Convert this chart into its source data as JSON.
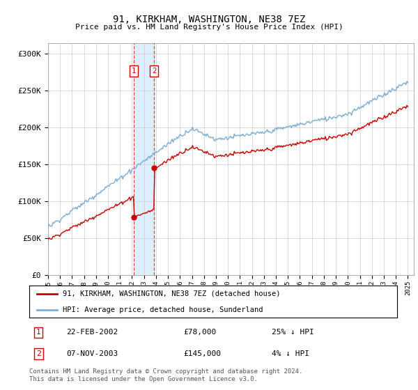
{
  "title": "91, KIRKHAM, WASHINGTON, NE38 7EZ",
  "subtitle": "Price paid vs. HM Land Registry's House Price Index (HPI)",
  "ylabel_ticks": [
    "£0",
    "£50K",
    "£100K",
    "£150K",
    "£200K",
    "£250K",
    "£300K"
  ],
  "ytick_values": [
    0,
    50000,
    100000,
    150000,
    200000,
    250000,
    300000
  ],
  "ylim": [
    0,
    315000
  ],
  "xlim_start": 1995.0,
  "xlim_end": 2025.5,
  "legend_line1": "91, KIRKHAM, WASHINGTON, NE38 7EZ (detached house)",
  "legend_line2": "HPI: Average price, detached house, Sunderland",
  "sale1_date": 2002.13,
  "sale1_price": 78000,
  "sale2_date": 2003.84,
  "sale2_price": 145000,
  "sale1_text": "22-FEB-2002",
  "sale1_amount": "£78,000",
  "sale1_pct": "25% ↓ HPI",
  "sale2_text": "07-NOV-2003",
  "sale2_amount": "£145,000",
  "sale2_pct": "4% ↓ HPI",
  "red_color": "#cc0000",
  "blue_color": "#7aaed6",
  "shaded_region_color": "#ddeeff",
  "copyright_text": "Contains HM Land Registry data © Crown copyright and database right 2024.\nThis data is licensed under the Open Government Licence v3.0.",
  "hpi_base_1995": 65000,
  "price_base_1995": 48000
}
